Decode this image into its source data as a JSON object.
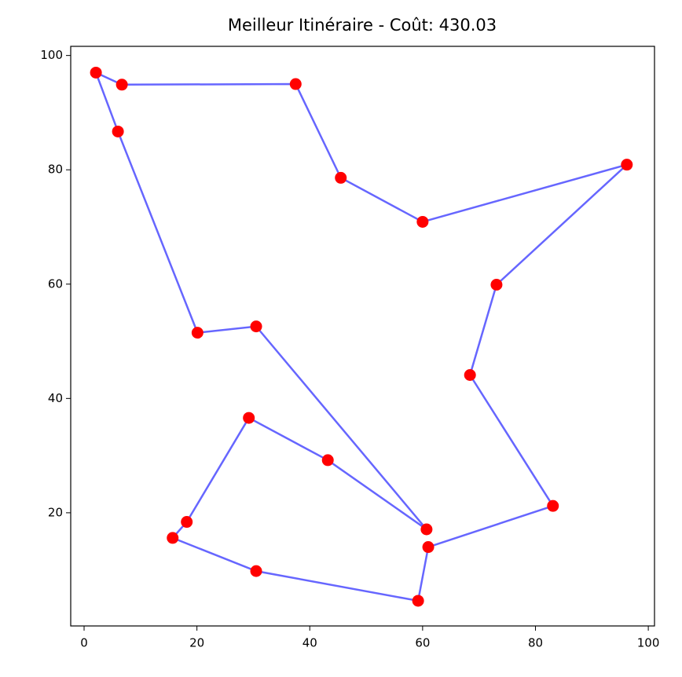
{
  "chart_data": {
    "type": "route",
    "title": "Meilleur Itinéraire - Coût: 430.03",
    "x": [
      2.1,
      6.7,
      37.5,
      45.5,
      60.0,
      96.2,
      73.1,
      68.4,
      83.1,
      61.0,
      59.2,
      30.5,
      15.7,
      18.2,
      29.2,
      43.2,
      60.7,
      30.5,
      20.1,
      6.0
    ],
    "y": [
      97.0,
      94.9,
      95.0,
      78.6,
      70.9,
      80.9,
      59.9,
      44.1,
      21.2,
      14.0,
      4.6,
      9.8,
      15.6,
      18.4,
      36.6,
      29.2,
      17.1,
      52.6,
      51.5,
      86.7
    ],
    "closed": true,
    "line_color": "#0000ff",
    "point_color": "#ff0000",
    "xlim": [
      -2.37,
      101.1
    ],
    "ylim": [
      0.2,
      101.6
    ],
    "xticks": [
      0,
      20,
      40,
      60,
      80,
      100
    ],
    "yticks": [
      20,
      40,
      60,
      80,
      100
    ],
    "grid": false
  }
}
